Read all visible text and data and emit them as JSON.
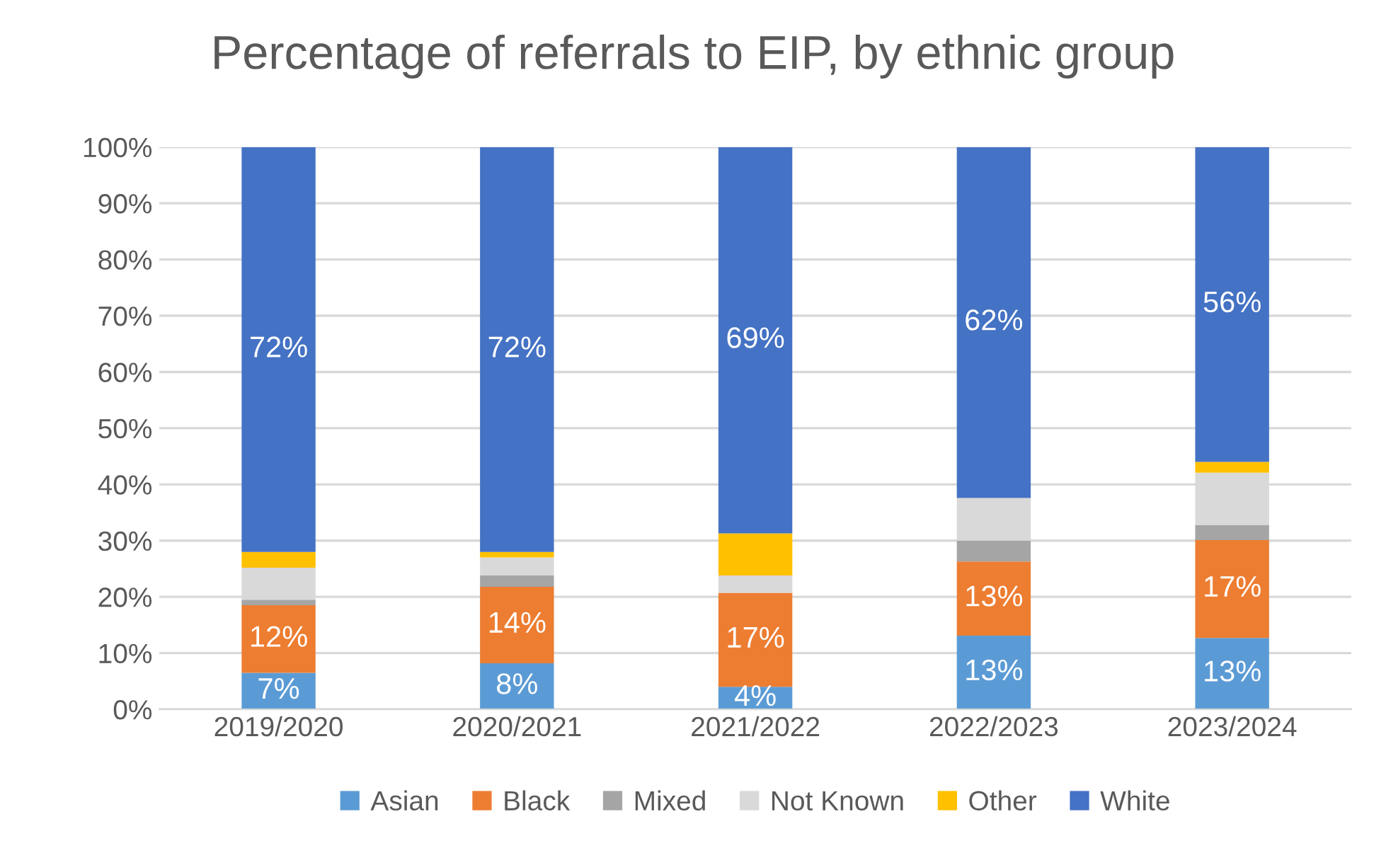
{
  "chart_data": {
    "type": "bar",
    "stacked": true,
    "title": "Percentage of referrals to EIP, by ethnic group",
    "categories": [
      "2019/2020",
      "2020/2021",
      "2021/2022",
      "2022/2023",
      "2023/2024"
    ],
    "series": [
      {
        "name": "Asian",
        "color": "#5b9bd5",
        "values": [
          6.5,
          8.2,
          4.0,
          13.1,
          12.7
        ],
        "value_labels": [
          "7%",
          "8%",
          "4%",
          "13%",
          "13%"
        ]
      },
      {
        "name": "Black",
        "color": "#ed7d31",
        "values": [
          12.0,
          13.6,
          16.7,
          13.2,
          17.4
        ],
        "value_labels": [
          "12%",
          "14%",
          "17%",
          "13%",
          "17%"
        ]
      },
      {
        "name": "Mixed",
        "color": "#a5a5a5",
        "values": [
          1.0,
          2.0,
          0,
          3.7,
          2.7
        ]
      },
      {
        "name": "Not Known",
        "color": "#d9d9d9",
        "values": [
          5.7,
          3.2,
          3.1,
          7.6,
          9.3
        ]
      },
      {
        "name": "Other",
        "color": "#ffc000",
        "values": [
          2.8,
          1.0,
          7.5,
          0,
          1.9
        ]
      },
      {
        "name": "White",
        "color": "#4472c4",
        "values": [
          72.0,
          72.0,
          68.7,
          62.4,
          56.0
        ],
        "value_labels": [
          "72%",
          "72%",
          "69%",
          "62%",
          "56%"
        ]
      }
    ],
    "ylim": [
      0,
      100
    ],
    "yticks": [
      {
        "value": 0,
        "label": "0%"
      },
      {
        "value": 10,
        "label": "10%"
      },
      {
        "value": 20,
        "label": "20%"
      },
      {
        "value": 30,
        "label": "30%"
      },
      {
        "value": 40,
        "label": "40%"
      },
      {
        "value": 50,
        "label": "50%"
      },
      {
        "value": 60,
        "label": "60%"
      },
      {
        "value": 70,
        "label": "70%"
      },
      {
        "value": 80,
        "label": "80%"
      },
      {
        "value": 90,
        "label": "90%"
      },
      {
        "value": 100,
        "label": "100%"
      }
    ],
    "grid": "y",
    "legend": "bottom"
  }
}
